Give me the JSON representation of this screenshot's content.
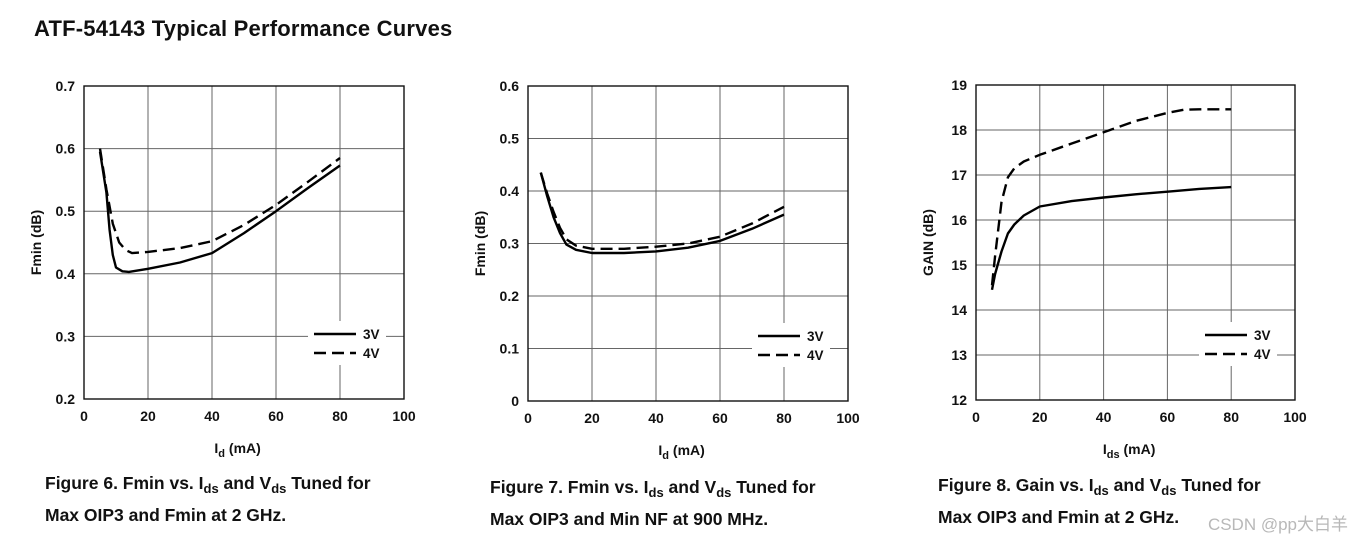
{
  "page_title": "ATF-54143 Typical Performance Curves",
  "watermark": "CSDN @pp大白羊",
  "captions": [
    {
      "prefix": "Figure 6.  Fmin vs. I",
      "sub1": "ds",
      "mid": " and V",
      "sub2": "ds",
      "suffix": " Tuned for",
      "line2": "Max OIP3 and Fmin at 2 GHz."
    },
    {
      "prefix": "Figure 7.  Fmin vs. I",
      "sub1": "ds",
      "mid": " and V",
      "sub2": "ds",
      "suffix": " Tuned for",
      "line2": "Max OIP3 and Min NF at 900 MHz."
    },
    {
      "prefix": "Figure 8.  Gain vs. I",
      "sub1": "ds",
      "mid": " and V",
      "sub2": "ds",
      "suffix": " Tuned for",
      "line2": "Max OIP3 and Fmin at 2 GHz."
    }
  ],
  "chart_data": [
    {
      "type": "line",
      "xlabel": "I",
      "xlabel_sub": "d",
      "xlabel_unit": " (mA)",
      "ylabel": "Fmin (dB)",
      "xlim": [
        0,
        100
      ],
      "ylim": [
        0.2,
        0.7
      ],
      "xticks": [
        "0",
        "20",
        "40",
        "60",
        "80",
        "100"
      ],
      "yticks": [
        "0.2",
        "0.3",
        "0.4",
        "0.5",
        "0.6",
        "0.7"
      ],
      "grid": true,
      "legend_position": "bottom-right",
      "series": [
        {
          "name": "3V",
          "dash": "solid",
          "x": [
            5,
            7,
            8,
            9,
            10,
            12,
            14,
            20,
            30,
            40,
            50,
            60,
            70,
            80
          ],
          "y": [
            0.595,
            0.53,
            0.47,
            0.43,
            0.41,
            0.404,
            0.403,
            0.408,
            0.418,
            0.433,
            0.465,
            0.5,
            0.537,
            0.573
          ]
        },
        {
          "name": "4V",
          "dash": "dashed",
          "x": [
            5,
            7,
            9,
            11,
            13,
            15,
            20,
            30,
            40,
            50,
            60,
            70,
            80
          ],
          "y": [
            0.6,
            0.535,
            0.48,
            0.45,
            0.438,
            0.433,
            0.435,
            0.441,
            0.452,
            0.478,
            0.51,
            0.547,
            0.585
          ]
        }
      ]
    },
    {
      "type": "line",
      "xlabel": "I",
      "xlabel_sub": "d",
      "xlabel_unit": " (mA)",
      "ylabel": "Fmin (dB)",
      "xlim": [
        0,
        100
      ],
      "ylim": [
        0,
        0.6
      ],
      "xticks": [
        "0",
        "20",
        "40",
        "60",
        "80",
        "100"
      ],
      "yticks": [
        "0",
        "0.1",
        "0.2",
        "0.3",
        "0.4",
        "0.5",
        "0.6"
      ],
      "grid": true,
      "legend_position": "bottom-right",
      "series": [
        {
          "name": "3V",
          "dash": "solid",
          "x": [
            4,
            6,
            8,
            10,
            12,
            15,
            20,
            30,
            40,
            50,
            60,
            70,
            80
          ],
          "y": [
            0.435,
            0.39,
            0.35,
            0.32,
            0.298,
            0.288,
            0.282,
            0.282,
            0.285,
            0.292,
            0.305,
            0.328,
            0.355
          ]
        },
        {
          "name": "4V",
          "dash": "dashed",
          "x": [
            4,
            6,
            8,
            10,
            12,
            15,
            20,
            30,
            40,
            50,
            60,
            70,
            80
          ],
          "y": [
            0.435,
            0.395,
            0.36,
            0.33,
            0.308,
            0.296,
            0.29,
            0.29,
            0.294,
            0.3,
            0.313,
            0.338,
            0.37
          ]
        }
      ]
    },
    {
      "type": "line",
      "xlabel": "I",
      "xlabel_sub": "ds",
      "xlabel_unit": " (mA)",
      "ylabel": "GAIN (dB)",
      "xlim": [
        0,
        100
      ],
      "ylim": [
        12,
        19
      ],
      "xticks": [
        "0",
        "20",
        "40",
        "60",
        "80",
        "100"
      ],
      "yticks": [
        "12",
        "13",
        "14",
        "15",
        "16",
        "17",
        "18",
        "19"
      ],
      "grid": true,
      "legend_position": "bottom-right",
      "series": [
        {
          "name": "3V",
          "dash": "solid",
          "x": [
            5,
            6,
            8,
            10,
            12,
            15,
            20,
            30,
            40,
            50,
            60,
            70,
            80
          ],
          "y": [
            14.45,
            14.8,
            15.3,
            15.7,
            15.9,
            16.1,
            16.3,
            16.42,
            16.5,
            16.57,
            16.63,
            16.69,
            16.73
          ]
        },
        {
          "name": "4V",
          "dash": "dashed",
          "x": [
            5,
            6,
            8,
            10,
            12,
            15,
            20,
            30,
            40,
            50,
            60,
            65,
            70,
            80
          ],
          "y": [
            14.55,
            15.2,
            16.4,
            16.95,
            17.15,
            17.3,
            17.45,
            17.7,
            17.95,
            18.2,
            18.38,
            18.45,
            18.46,
            18.46
          ]
        }
      ]
    }
  ]
}
